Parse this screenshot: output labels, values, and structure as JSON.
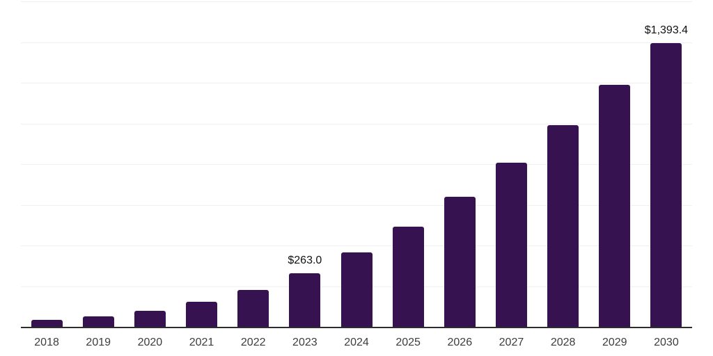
{
  "chart_data": {
    "type": "bar",
    "title": "",
    "xlabel": "",
    "ylabel": "",
    "categories": [
      "2018",
      "2019",
      "2020",
      "2021",
      "2022",
      "2023",
      "2024",
      "2025",
      "2026",
      "2027",
      "2028",
      "2029",
      "2030"
    ],
    "values": [
      34,
      51,
      78,
      123,
      181,
      263.0,
      365,
      491,
      641,
      807,
      992,
      1189,
      1393.4
    ],
    "data_labels": [
      "",
      "",
      "",
      "",
      "",
      "$263.0",
      "",
      "",
      "",
      "",
      "",
      "",
      "$1,393.4"
    ],
    "ylim": [
      0,
      1600
    ],
    "gridline_step": 200,
    "grid": true,
    "legend": false,
    "y_axis_labels_visible": false,
    "colors": {
      "bar": "#371250",
      "axis_line": "#2d2d2d",
      "gridline": "#f0f0f0",
      "tick_label": "#3c3c3c",
      "data_label": "#111111",
      "background": "#ffffff"
    }
  }
}
